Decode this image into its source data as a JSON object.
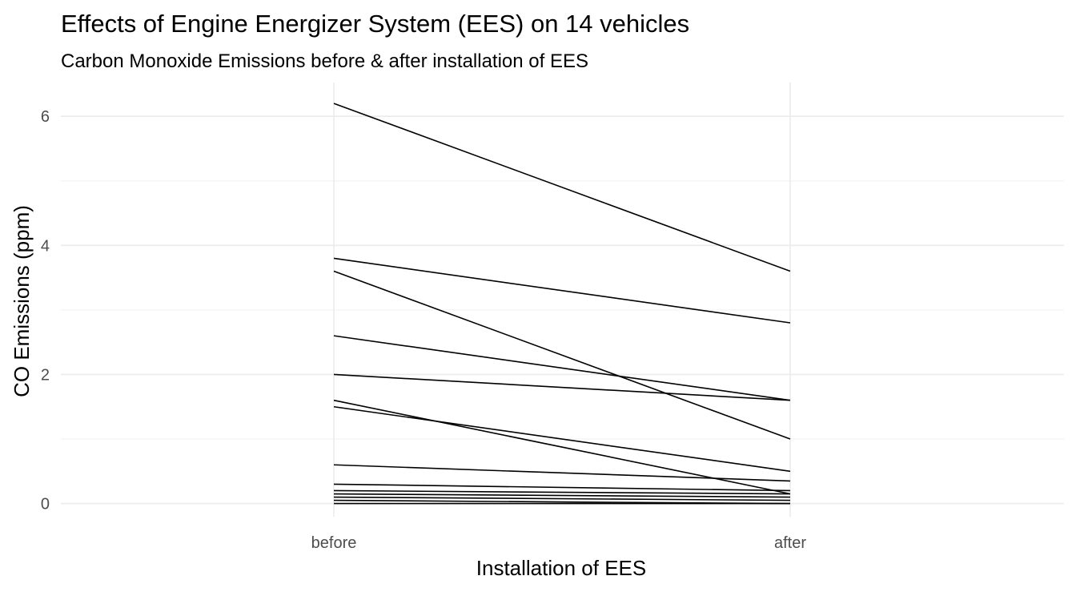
{
  "chart_data": {
    "type": "line",
    "title": "Effects of Engine Energizer System (EES) on 14 vehicles",
    "subtitle": "Carbon Monoxide Emissions before & after installation of EES",
    "xlabel": "Installation of EES",
    "ylabel": "CO Emissions (ppm)",
    "categories": [
      "before",
      "after"
    ],
    "y_ticks": [
      0,
      2,
      4,
      6
    ],
    "ylim": [
      -0.2,
      6.5
    ],
    "grid": true,
    "legend": "none",
    "series": [
      {
        "values": [
          6.2,
          3.6
        ]
      },
      {
        "values": [
          3.8,
          2.8
        ]
      },
      {
        "values": [
          3.6,
          1.0
        ]
      },
      {
        "values": [
          2.6,
          1.6
        ]
      },
      {
        "values": [
          2.0,
          1.6
        ]
      },
      {
        "values": [
          1.6,
          0.15
        ]
      },
      {
        "values": [
          1.5,
          0.5
        ]
      },
      {
        "values": [
          0.6,
          0.35
        ]
      },
      {
        "values": [
          0.3,
          0.2
        ]
      },
      {
        "values": [
          0.2,
          0.15
        ]
      },
      {
        "values": [
          0.15,
          0.1
        ]
      },
      {
        "values": [
          0.1,
          0.05
        ]
      },
      {
        "values": [
          0.05,
          0.0
        ]
      },
      {
        "values": [
          0.0,
          0.0
        ]
      }
    ]
  }
}
